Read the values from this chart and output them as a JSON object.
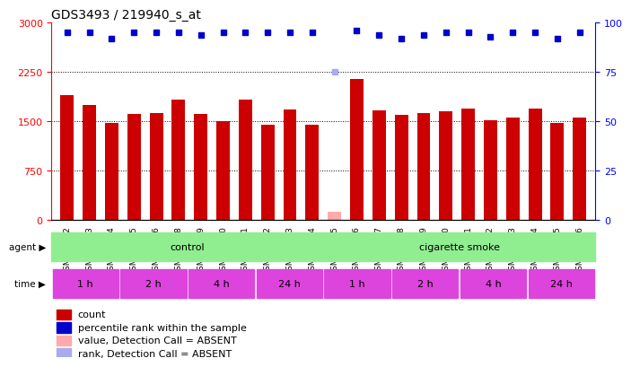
{
  "title": "GDS3493 / 219940_s_at",
  "samples": [
    "GSM270872",
    "GSM270873",
    "GSM270874",
    "GSM270875",
    "GSM270876",
    "GSM270878",
    "GSM270879",
    "GSM270880",
    "GSM270881",
    "GSM270882",
    "GSM270883",
    "GSM270884",
    "GSM270885",
    "GSM270886",
    "GSM270887",
    "GSM270888",
    "GSM270889",
    "GSM270890",
    "GSM270891",
    "GSM270892",
    "GSM270893",
    "GSM270894",
    "GSM270895",
    "GSM270896"
  ],
  "counts": [
    1900,
    1750,
    1480,
    1610,
    1620,
    1830,
    1610,
    1500,
    1830,
    1450,
    1680,
    1450,
    120,
    2150,
    1660,
    1600,
    1620,
    1650,
    1700,
    1520,
    1560,
    1700,
    1480,
    1560
  ],
  "absent_mask": [
    false,
    false,
    false,
    false,
    false,
    false,
    false,
    false,
    false,
    false,
    false,
    false,
    true,
    false,
    false,
    false,
    false,
    false,
    false,
    false,
    false,
    false,
    false,
    false
  ],
  "percentile_ranks": [
    95,
    95,
    92,
    95,
    95,
    95,
    94,
    95,
    95,
    95,
    95,
    95,
    75,
    96,
    94,
    92,
    94,
    95,
    95,
    93,
    95,
    95,
    92,
    95
  ],
  "absent_rank_mask": [
    false,
    false,
    false,
    false,
    false,
    false,
    false,
    false,
    false,
    false,
    false,
    false,
    true,
    false,
    false,
    false,
    false,
    false,
    false,
    false,
    false,
    false,
    false,
    false
  ],
  "ylim_left": [
    0,
    3000
  ],
  "ylim_right": [
    0,
    100
  ],
  "yticks_left": [
    0,
    750,
    1500,
    2250,
    3000
  ],
  "yticks_right": [
    0,
    25,
    50,
    75,
    100
  ],
  "bar_color": "#cc0000",
  "bar_absent_color": "#ffaaaa",
  "dot_color": "#0000cc",
  "dot_absent_color": "#aaaaee",
  "agent_groups": [
    {
      "label": "control",
      "start": 0,
      "end": 12,
      "color": "#90ee90"
    },
    {
      "label": "cigarette smoke",
      "start": 12,
      "end": 24,
      "color": "#90ee90"
    }
  ],
  "time_groups": [
    {
      "label": "1 h",
      "start": 0,
      "end": 3
    },
    {
      "label": "2 h",
      "start": 3,
      "end": 6
    },
    {
      "label": "4 h",
      "start": 6,
      "end": 9
    },
    {
      "label": "24 h",
      "start": 9,
      "end": 12
    },
    {
      "label": "1 h",
      "start": 12,
      "end": 15
    },
    {
      "label": "2 h",
      "start": 15,
      "end": 18
    },
    {
      "label": "4 h",
      "start": 18,
      "end": 21
    },
    {
      "label": "24 h",
      "start": 21,
      "end": 24
    }
  ],
  "time_color": "#dd44dd",
  "legend_items": [
    {
      "color": "#cc0000",
      "label": "count"
    },
    {
      "color": "#0000cc",
      "label": "percentile rank within the sample"
    },
    {
      "color": "#ffaaaa",
      "label": "value, Detection Call = ABSENT"
    },
    {
      "color": "#aaaaee",
      "label": "rank, Detection Call = ABSENT"
    }
  ],
  "background_color": "#ffffff",
  "plot_bg_color": "#ffffff"
}
